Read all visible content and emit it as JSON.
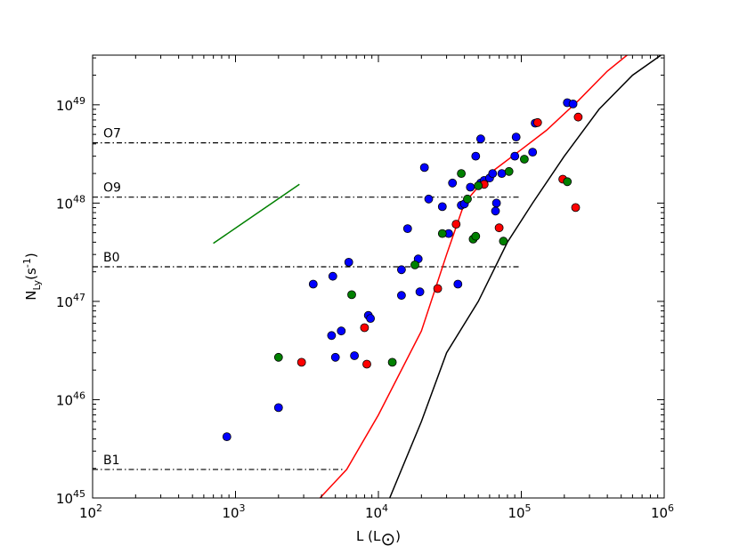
{
  "chart_data": {
    "type": "scatter",
    "x_scale": "log",
    "y_scale": "log",
    "xlim": [
      100,
      1000000
    ],
    "ylim": [
      1e+45,
      3.2e+49
    ],
    "x_ticks": [
      {
        "value": 100,
        "base": "10",
        "exp": "2"
      },
      {
        "value": 1000,
        "base": "10",
        "exp": "3"
      },
      {
        "value": 10000,
        "base": "10",
        "exp": "4"
      },
      {
        "value": 100000,
        "base": "10",
        "exp": "5"
      },
      {
        "value": 1000000,
        "base": "10",
        "exp": "6"
      }
    ],
    "y_ticks": [
      {
        "value": 1e+45,
        "base": "10",
        "exp": "45"
      },
      {
        "value": 1e+46,
        "base": "10",
        "exp": "46"
      },
      {
        "value": 1e+47,
        "base": "10",
        "exp": "47"
      },
      {
        "value": 1e+48,
        "base": "10",
        "exp": "48"
      },
      {
        "value": 1e+49,
        "base": "10",
        "exp": "49"
      }
    ],
    "xlabel": {
      "main": "L (L",
      "sub": "⊙",
      "close": ")"
    },
    "ylabel": {
      "main": "N",
      "sub": "Ly",
      "rest": "(s",
      "sup": "-1",
      "close": ")"
    },
    "spectral_types": [
      {
        "label": "O7",
        "y": 4.1e+48,
        "x_end": 100000
      },
      {
        "label": "O9",
        "y": 1.15e+48,
        "x_end": 100000
      },
      {
        "label": "B0",
        "y": 2.25e+47,
        "x_end": 100000
      },
      {
        "label": "B1",
        "y": 1.95e+45,
        "x_end": 5800
      }
    ],
    "lines": [
      {
        "color": "#ff0000",
        "points": [
          [
            3900,
            1e+45
          ],
          [
            6000,
            1.95e+45
          ],
          [
            10000,
            7e+45
          ],
          [
            20000,
            5e+46
          ],
          [
            30000,
            3e+47
          ],
          [
            40000,
            1e+48
          ],
          [
            60000,
            2e+48
          ],
          [
            100000,
            3.5e+48
          ],
          [
            150000,
            5.5e+48
          ],
          [
            250000,
            1.1e+49
          ],
          [
            400000,
            2.2e+49
          ],
          [
            550000,
            3.2e+49
          ]
        ]
      },
      {
        "color": "#000000",
        "points": [
          [
            12000,
            1e+45
          ],
          [
            20000,
            6e+45
          ],
          [
            30000,
            3e+46
          ],
          [
            50000,
            1e+47
          ],
          [
            80000,
            4e+47
          ],
          [
            120000,
            1e+48
          ],
          [
            200000,
            3e+48
          ],
          [
            350000,
            9e+48
          ],
          [
            600000,
            2e+49
          ],
          [
            950000,
            3.2e+49
          ]
        ]
      },
      {
        "color": "#008000",
        "points": [
          [
            700,
            3.9e+47
          ],
          [
            2800,
            1.55e+48
          ]
        ]
      }
    ],
    "series": [
      {
        "color": "#0000ff",
        "points": [
          [
            870,
            4.2e+45
          ],
          [
            2000,
            8.3e+45
          ],
          [
            3500,
            1.5e+47
          ],
          [
            4800,
            1.8e+47
          ],
          [
            4700,
            4.5e+46
          ],
          [
            5000,
            2.7e+46
          ],
          [
            5500,
            5e+46
          ],
          [
            6200,
            2.5e+47
          ],
          [
            6800,
            2.8e+46
          ],
          [
            8500,
            7.2e+46
          ],
          [
            8800,
            6.7e+46
          ],
          [
            14500,
            2.1e+47
          ],
          [
            14500,
            1.15e+47
          ],
          [
            16000,
            5.5e+47
          ],
          [
            19000,
            2.7e+47
          ],
          [
            19500,
            1.25e+47
          ],
          [
            21000,
            2.3e+48
          ],
          [
            22500,
            1.1e+48
          ],
          [
            28000,
            9.2e+47
          ],
          [
            31000,
            4.9e+47
          ],
          [
            33000,
            1.6e+48
          ],
          [
            36000,
            1.5e+47
          ],
          [
            38000,
            9.5e+47
          ],
          [
            40000,
            9.8e+47
          ],
          [
            44000,
            1.45e+48
          ],
          [
            48000,
            3e+48
          ],
          [
            52000,
            4.5e+48
          ],
          [
            52000,
            1.6e+48
          ],
          [
            55000,
            1.7e+48
          ],
          [
            60000,
            1.8e+48
          ],
          [
            63000,
            2e+48
          ],
          [
            66000,
            8.3e+47
          ],
          [
            67000,
            1e+48
          ],
          [
            73000,
            2e+48
          ],
          [
            90000,
            3e+48
          ],
          [
            92000,
            4.7e+48
          ],
          [
            120000,
            3.3e+48
          ],
          [
            125000,
            6.5e+48
          ],
          [
            210000,
            1.05e+49
          ],
          [
            230000,
            1.02e+49
          ]
        ]
      },
      {
        "color": "#ff0000",
        "points": [
          [
            2900,
            2.4e+46
          ],
          [
            8000,
            5.4e+46
          ],
          [
            8300,
            2.3e+46
          ],
          [
            26000,
            1.35e+47
          ],
          [
            35000,
            6.1e+47
          ],
          [
            55000,
            1.55e+48
          ],
          [
            70000,
            5.6e+47
          ],
          [
            130000,
            6.6e+48
          ],
          [
            195000,
            1.75e+48
          ],
          [
            240000,
            9e+47
          ],
          [
            250000,
            7.5e+48
          ]
        ]
      },
      {
        "color": "#008000",
        "points": [
          [
            2000,
            2.7e+46
          ],
          [
            6500,
            1.17e+47
          ],
          [
            12500,
            2.4e+46
          ],
          [
            18000,
            2.35e+47
          ],
          [
            28000,
            4.9e+47
          ],
          [
            38000,
            2e+48
          ],
          [
            42000,
            1.1e+48
          ],
          [
            46000,
            4.3e+47
          ],
          [
            48000,
            4.6e+47
          ],
          [
            50000,
            1.5e+48
          ],
          [
            75000,
            4.1e+47
          ],
          [
            82000,
            2.1e+48
          ],
          [
            105000,
            2.8e+48
          ],
          [
            210000,
            1.65e+48
          ]
        ]
      }
    ]
  }
}
